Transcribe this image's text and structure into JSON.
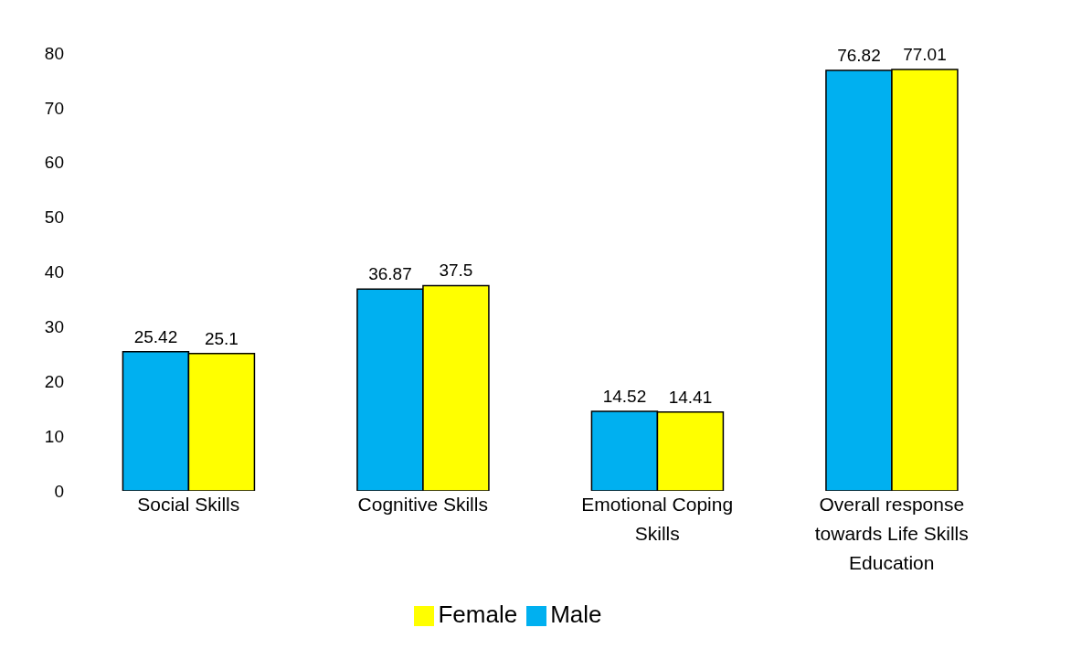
{
  "chart_data": {
    "type": "bar",
    "categories": [
      "Social Skills",
      "Cognitive Skills",
      "Emotional Coping Skills",
      "Overall response towards Life Skills Education"
    ],
    "series": [
      {
        "name": "Male",
        "color": "#00b0f0",
        "values": [
          25.42,
          36.87,
          14.52,
          76.82
        ]
      },
      {
        "name": "Female",
        "color": "#ffff00",
        "values": [
          25.1,
          37.5,
          14.41,
          77.01
        ]
      }
    ],
    "ylim": [
      0,
      80
    ],
    "yticks": [
      0,
      10,
      20,
      30,
      40,
      50,
      60,
      70,
      80
    ],
    "grid": false,
    "legend": "bottom",
    "data_labels": true
  }
}
